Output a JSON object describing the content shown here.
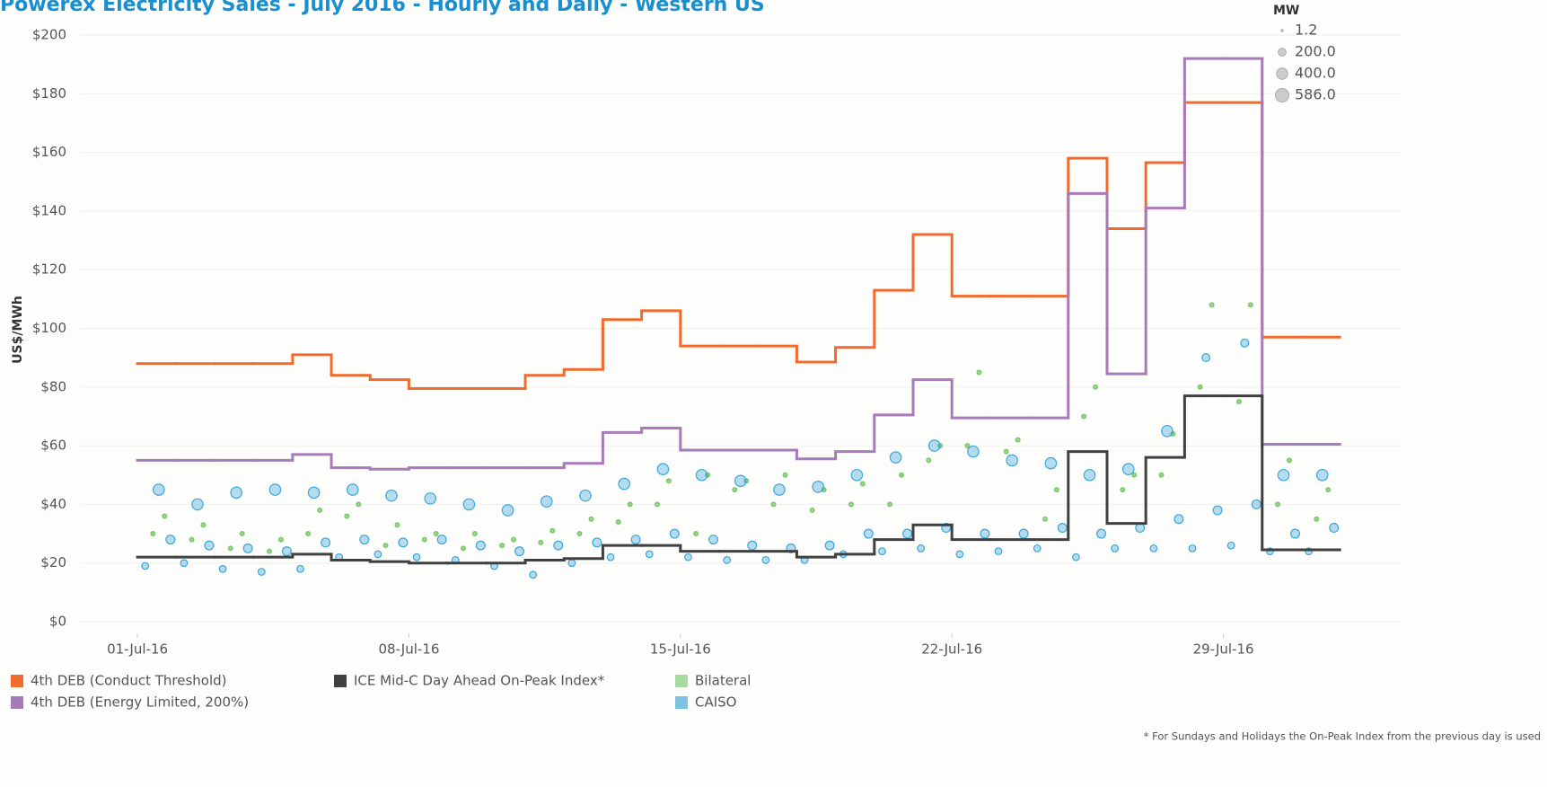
{
  "chart_data": {
    "type": "line",
    "title": "Powerex Electricity Sales - July 2016 - Hourly and Daily - Western US",
    "y_label": "US$/MWh",
    "footnote": "* For Sundays and Holidays the On-Peak Index from the previous day is used",
    "xlim": [
      -1.46,
      32.57
    ],
    "xticks": [
      {
        "value": 0,
        "label": "01-Jul-16"
      },
      {
        "value": 7,
        "label": "08-Jul-16"
      },
      {
        "value": 14,
        "label": "15-Jul-16"
      },
      {
        "value": 21,
        "label": "22-Jul-16"
      },
      {
        "value": 28,
        "label": "29-Jul-16"
      }
    ],
    "ylim": [
      -3.98,
      202.76
    ],
    "yticks": [
      {
        "value": 0,
        "label": "$0"
      },
      {
        "value": 20,
        "label": "$20"
      },
      {
        "value": 40,
        "label": "$40"
      },
      {
        "value": 60,
        "label": "$60"
      },
      {
        "value": 80,
        "label": "$80"
      },
      {
        "value": 100,
        "label": "$100"
      },
      {
        "value": 120,
        "label": "$120"
      },
      {
        "value": 140,
        "label": "$140"
      },
      {
        "value": 160,
        "label": "$160"
      },
      {
        "value": 180,
        "label": "$180"
      },
      {
        "value": 200,
        "label": "$200"
      }
    ],
    "grid": true,
    "size_legend": {
      "title": "MW",
      "max": 586,
      "items": [
        {
          "value": 1.2,
          "label": "1.2"
        },
        {
          "value": 200,
          "label": "200.0"
        },
        {
          "value": 400,
          "label": "400.0"
        },
        {
          "value": 586,
          "label": "586.0"
        }
      ]
    },
    "series": [
      {
        "name": "Bilateral",
        "type": "scatter",
        "color": "#6cc25a",
        "legend_color": "#a6dba0",
        "x": [
          0.4,
          0.7,
          1.4,
          1.7,
          2.4,
          2.7,
          3.4,
          3.7,
          4.4,
          4.7,
          5.4,
          5.7,
          6.4,
          6.7,
          7.4,
          7.7,
          8.4,
          8.7,
          9.4,
          9.7,
          10.4,
          10.7,
          11.4,
          11.7,
          12.4,
          12.7,
          13.4,
          13.7,
          14.4,
          14.7,
          15.4,
          15.7,
          16.4,
          16.7,
          17.4,
          17.7,
          18.4,
          18.7,
          19.4,
          19.7,
          20.4,
          20.7,
          21.4,
          21.7,
          22.4,
          22.7,
          23.4,
          23.7,
          24.4,
          24.7,
          25.4,
          25.7,
          26.4,
          26.7,
          27.4,
          27.7,
          28.4,
          28.7,
          29.4,
          29.7,
          30.4,
          30.7
        ],
        "values": [
          30,
          36,
          28,
          33,
          25,
          30,
          24,
          28,
          30,
          38,
          36,
          40,
          26,
          33,
          28,
          30,
          25,
          30,
          26,
          28,
          27,
          31,
          30,
          35,
          34,
          40,
          40,
          48,
          30,
          50,
          45,
          48,
          40,
          50,
          38,
          45,
          40,
          47,
          40,
          50,
          55,
          60,
          60,
          85,
          58,
          62,
          35,
          45,
          70,
          80,
          45,
          50,
          50,
          64,
          80,
          108,
          75,
          108,
          40,
          55,
          35,
          45
        ],
        "sizes": [
          60,
          60,
          60,
          60,
          60,
          60,
          60,
          60,
          60,
          60,
          60,
          60,
          60,
          60,
          60,
          60,
          60,
          60,
          60,
          60,
          60,
          60,
          60,
          60,
          60,
          60,
          60,
          60,
          60,
          60,
          60,
          60,
          60,
          60,
          60,
          60,
          60,
          60,
          60,
          60,
          60,
          60,
          60,
          60,
          60,
          60,
          60,
          60,
          60,
          60,
          60,
          60,
          60,
          60,
          60,
          60,
          60,
          60,
          60,
          60,
          60,
          60
        ]
      },
      {
        "name": "CAISO",
        "type": "scatter",
        "color": "#2a9fd6",
        "legend_color": "#7cc3e3",
        "x": [
          0.2,
          0.55,
          0.85,
          1.2,
          1.55,
          1.85,
          2.2,
          2.55,
          2.85,
          3.2,
          3.55,
          3.85,
          4.2,
          4.55,
          4.85,
          5.2,
          5.55,
          5.85,
          6.2,
          6.55,
          6.85,
          7.2,
          7.55,
          7.85,
          8.2,
          8.55,
          8.85,
          9.2,
          9.55,
          9.85,
          10.2,
          10.55,
          10.85,
          11.2,
          11.55,
          11.85,
          12.2,
          12.55,
          12.85,
          13.2,
          13.55,
          13.85,
          14.2,
          14.55,
          14.85,
          15.2,
          15.55,
          15.85,
          16.2,
          16.55,
          16.85,
          17.2,
          17.55,
          17.85,
          18.2,
          18.55,
          18.85,
          19.2,
          19.55,
          19.85,
          20.2,
          20.55,
          20.85,
          21.2,
          21.55,
          21.85,
          22.2,
          22.55,
          22.85,
          23.2,
          23.55,
          23.85,
          24.2,
          24.55,
          24.85,
          25.2,
          25.55,
          25.85,
          26.2,
          26.55,
          26.85,
          27.2,
          27.55,
          27.85,
          28.2,
          28.55,
          28.85,
          29.2,
          29.55,
          29.85,
          30.2,
          30.55,
          30.85
        ],
        "values": [
          19,
          45,
          28,
          20,
          40,
          26,
          18,
          44,
          25,
          17,
          45,
          24,
          18,
          44,
          27,
          22,
          45,
          28,
          23,
          43,
          27,
          22,
          42,
          28,
          21,
          40,
          26,
          19,
          38,
          24,
          16,
          41,
          26,
          20,
          43,
          27,
          22,
          47,
          28,
          23,
          52,
          30,
          22,
          50,
          28,
          21,
          48,
          26,
          21,
          45,
          25,
          21,
          46,
          26,
          23,
          50,
          30,
          24,
          56,
          30,
          25,
          60,
          32,
          23,
          58,
          30,
          24,
          55,
          30,
          25,
          54,
          32,
          22,
          50,
          30,
          25,
          52,
          32,
          25,
          65,
          35,
          25,
          90,
          38,
          26,
          95,
          40,
          24,
          50,
          30,
          24,
          50,
          32
        ],
        "sizes": [
          150,
          400,
          250,
          150,
          400,
          250,
          150,
          400,
          250,
          150,
          400,
          250,
          150,
          400,
          250,
          150,
          400,
          250,
          150,
          400,
          250,
          150,
          400,
          250,
          150,
          400,
          250,
          150,
          400,
          250,
          150,
          400,
          250,
          150,
          400,
          250,
          150,
          400,
          250,
          150,
          400,
          250,
          150,
          400,
          250,
          150,
          400,
          250,
          150,
          400,
          250,
          150,
          400,
          250,
          150,
          400,
          250,
          150,
          400,
          250,
          150,
          400,
          250,
          150,
          400,
          250,
          150,
          400,
          250,
          150,
          400,
          250,
          150,
          400,
          250,
          150,
          400,
          250,
          150,
          400,
          250,
          150,
          200,
          250,
          150,
          200,
          250,
          150,
          400,
          250,
          150,
          400,
          250
        ]
      },
      {
        "name": "4th DEB (Conduct Threshold)",
        "type": "step",
        "color": "#f26b2e",
        "x": [
          0,
          1,
          2,
          3,
          4,
          5,
          6,
          7,
          8,
          9,
          10,
          11,
          12,
          13,
          14,
          15,
          16,
          17,
          18,
          19,
          20,
          21,
          22,
          23,
          24,
          25,
          26,
          27,
          28,
          29,
          30
        ],
        "values": [
          88,
          88,
          88,
          88,
          91,
          84,
          82.5,
          79.5,
          79.5,
          79.5,
          84,
          86,
          103,
          106,
          94,
          94,
          94,
          88.5,
          93.5,
          113,
          132,
          111,
          111,
          111,
          158,
          134,
          156.5,
          177,
          177,
          97,
          97
        ]
      },
      {
        "name": "4th DEB (Energy Limited, 200%)",
        "type": "step",
        "color": "#a77bb8",
        "x": [
          0,
          1,
          2,
          3,
          4,
          5,
          6,
          7,
          8,
          9,
          10,
          11,
          12,
          13,
          14,
          15,
          16,
          17,
          18,
          19,
          20,
          21,
          22,
          23,
          24,
          25,
          26,
          27,
          28,
          29,
          30
        ],
        "values": [
          55,
          55,
          55,
          55,
          57,
          52.5,
          52,
          52.5,
          52.5,
          52.5,
          52.5,
          54,
          64.5,
          66,
          58.5,
          58.5,
          58.5,
          55.5,
          58,
          70.5,
          82.5,
          69.5,
          69.5,
          69.5,
          146,
          84.5,
          141,
          192,
          192,
          60.5,
          60.5
        ]
      },
      {
        "name": "ICE Mid-C Day Ahead On-Peak Index*",
        "type": "step",
        "color": "#404040",
        "x": [
          0,
          1,
          2,
          3,
          4,
          5,
          6,
          7,
          8,
          9,
          10,
          11,
          12,
          13,
          14,
          15,
          16,
          17,
          18,
          19,
          20,
          21,
          22,
          23,
          24,
          25,
          26,
          27,
          28,
          29,
          30
        ],
        "values": [
          22,
          22,
          22,
          22,
          23,
          21,
          20.5,
          20,
          20,
          20,
          21,
          21.5,
          26,
          26,
          24,
          24,
          24,
          22,
          23,
          28,
          33,
          28,
          28,
          28,
          58,
          33.5,
          56,
          77,
          77,
          24.5,
          24.5
        ]
      }
    ]
  }
}
